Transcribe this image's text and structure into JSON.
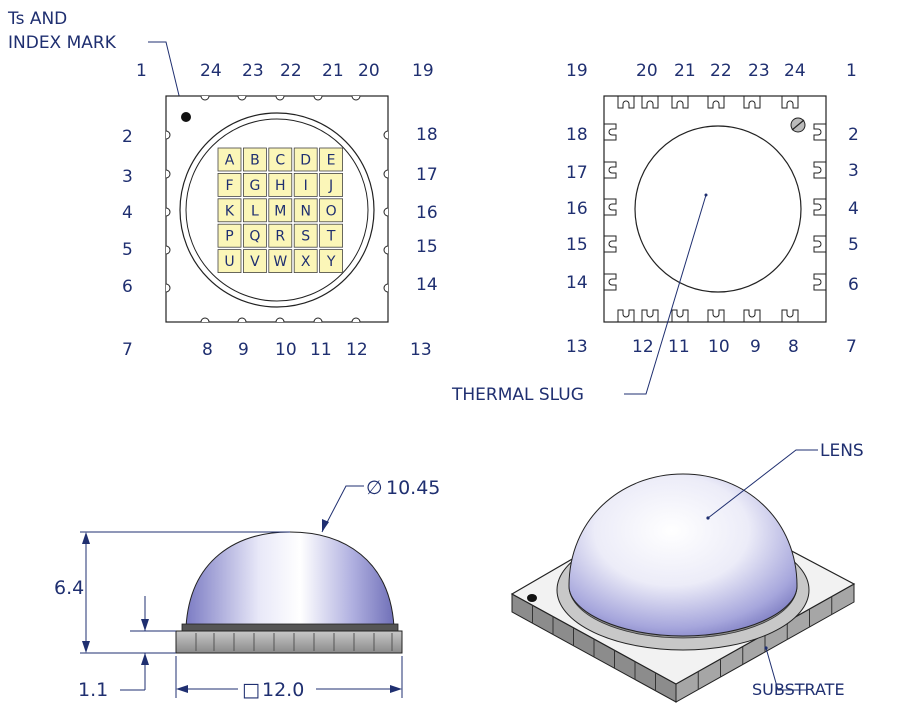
{
  "top_view": {
    "callout": [
      "Ts AND",
      "INDEX MARK"
    ],
    "pins_top": [
      "1",
      "24",
      "23",
      "22",
      "21",
      "20",
      "19"
    ],
    "pins_left": [
      "2",
      "3",
      "4",
      "5",
      "6"
    ],
    "pins_right": [
      "18",
      "17",
      "16",
      "15",
      "14"
    ],
    "pins_bottom": [
      "7",
      "8",
      "9",
      "10",
      "11",
      "12",
      "13"
    ],
    "grid_letters": [
      "A",
      "B",
      "C",
      "D",
      "E",
      "F",
      "G",
      "H",
      "I",
      "J",
      "K",
      "L",
      "M",
      "N",
      "O",
      "P",
      "Q",
      "R",
      "S",
      "T",
      "U",
      "V",
      "W",
      "X",
      "Y"
    ]
  },
  "bottom_view": {
    "callout": "THERMAL SLUG",
    "pins_top": [
      "19",
      "20",
      "21",
      "22",
      "23",
      "24",
      "1"
    ],
    "pins_left": [
      "18",
      "17",
      "16",
      "15",
      "14"
    ],
    "pins_right": [
      "2",
      "3",
      "4",
      "5",
      "6"
    ],
    "pins_bottom": [
      "13",
      "12",
      "11",
      "10",
      "9",
      "8",
      "7"
    ]
  },
  "side_view": {
    "diameter_symbol": "∅",
    "diameter": "10.45",
    "height": "6.4",
    "substrate_height": "1.1",
    "square_symbol": "□",
    "width": "12.0"
  },
  "iso_view": {
    "lens_label": "LENS",
    "substrate_label": "SUBSTRATE"
  },
  "colors": {
    "text": "#1f2f70",
    "grid_fill": "#fbf6b8",
    "lens_highlight": "#ffffff",
    "lens_shadow": "#7a7ac8",
    "substrate": "#9a9a9a"
  }
}
